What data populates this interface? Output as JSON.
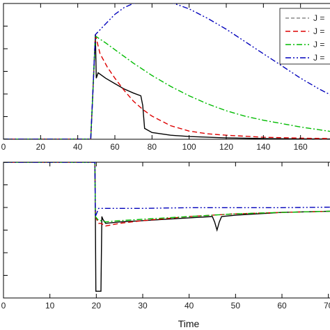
{
  "chart_data": [
    {
      "type": "line",
      "title": "",
      "xlabel": "",
      "ylabel": "",
      "xlim": [
        0,
        180
      ],
      "ylim": [
        0,
        1.0
      ],
      "x_ticks": [
        0,
        20,
        40,
        60,
        80,
        100,
        120,
        140,
        160
      ],
      "legend": {
        "placement": "top-right",
        "entries": [
          {
            "label": "J =",
            "color": "#888888",
            "dash": "5,3"
          },
          {
            "label": "J =",
            "color": "#dd0000",
            "dash": "7,4"
          },
          {
            "label": "J =",
            "color": "#00bb00",
            "dash": "8,3,2,3"
          },
          {
            "label": "J =",
            "color": "#0000bb",
            "dash": "8,3,2,3,2,3"
          }
        ]
      },
      "series": [
        {
          "color": "#000000",
          "dash": "",
          "x": [
            0,
            47,
            48,
            49.5,
            50,
            51,
            55,
            60,
            65,
            70,
            74,
            75,
            76,
            80,
            90,
            100,
            120,
            140,
            160,
            180
          ],
          "y": [
            0,
            0,
            0.3,
            0.77,
            0.45,
            0.49,
            0.45,
            0.41,
            0.37,
            0.34,
            0.32,
            0.25,
            0.08,
            0.05,
            0.03,
            0.02,
            0.01,
            0.005,
            0.002,
            0.001
          ]
        },
        {
          "color": "#dd0000",
          "dash": "7,4",
          "x": [
            0,
            47,
            48,
            49.5,
            52,
            56,
            60,
            65,
            70,
            75,
            80,
            90,
            100,
            110,
            120,
            140,
            160,
            180
          ],
          "y": [
            0,
            0,
            0.3,
            0.77,
            0.63,
            0.53,
            0.45,
            0.36,
            0.28,
            0.22,
            0.17,
            0.1,
            0.06,
            0.04,
            0.03,
            0.015,
            0.008,
            0.004
          ]
        },
        {
          "color": "#00bb00",
          "dash": "8,3,2,3",
          "x": [
            0,
            47,
            48,
            49.5,
            55,
            60,
            70,
            80,
            90,
            100,
            110,
            120,
            130,
            140,
            160,
            180
          ],
          "y": [
            0,
            0,
            0.3,
            0.76,
            0.71,
            0.66,
            0.56,
            0.47,
            0.39,
            0.32,
            0.26,
            0.21,
            0.17,
            0.14,
            0.09,
            0.05
          ]
        },
        {
          "color": "#0000bb",
          "dash": "8,3,2,3,2,3",
          "x": [
            0,
            47,
            48,
            49.5,
            55,
            60,
            65,
            70,
            75,
            80,
            85,
            90,
            100,
            110,
            120,
            130,
            140,
            150,
            160,
            170,
            180
          ],
          "y": [
            0,
            0,
            0.3,
            0.77,
            0.85,
            0.92,
            0.97,
            1.0,
            1.02,
            1.03,
            1.025,
            1.01,
            0.96,
            0.89,
            0.81,
            0.72,
            0.63,
            0.54,
            0.45,
            0.37,
            0.3
          ]
        }
      ]
    },
    {
      "type": "line",
      "title": "",
      "xlabel": "Time",
      "ylabel": "",
      "xlim": [
        0,
        72
      ],
      "ylim": [
        0,
        1.0
      ],
      "x_ticks": [
        0,
        10,
        20,
        30,
        40,
        50,
        60,
        70
      ],
      "series": [
        {
          "color": "#000000",
          "dash": "",
          "x": [
            0,
            19.7,
            19.8,
            19.9,
            20.5,
            21,
            21.2,
            21.4,
            22,
            25,
            30,
            40,
            45,
            45.5,
            46,
            46.5,
            47,
            50,
            60,
            72
          ],
          "y": [
            1.0,
            1.0,
            0.6,
            0.05,
            0.05,
            0.05,
            0.6,
            0.58,
            0.55,
            0.56,
            0.57,
            0.59,
            0.6,
            0.56,
            0.5,
            0.56,
            0.6,
            0.61,
            0.63,
            0.64
          ]
        },
        {
          "color": "#dd0000",
          "dash": "7,4",
          "x": [
            0,
            19.7,
            19.8,
            20.5,
            21,
            22,
            25,
            30,
            40,
            50,
            60,
            72
          ],
          "y": [
            1.0,
            1.0,
            0.6,
            0.55,
            0.55,
            0.53,
            0.55,
            0.57,
            0.6,
            0.62,
            0.63,
            0.64
          ]
        },
        {
          "color": "#00bb00",
          "dash": "8,3,2,3",
          "x": [
            0,
            19.7,
            19.8,
            20.5,
            21,
            22,
            25,
            30,
            40,
            50,
            60,
            72
          ],
          "y": [
            1.0,
            1.0,
            0.6,
            0.57,
            0.57,
            0.56,
            0.57,
            0.58,
            0.6,
            0.62,
            0.63,
            0.64
          ]
        },
        {
          "color": "#0000bb",
          "dash": "8,3,2,3,2,3",
          "x": [
            0,
            19.7,
            19.8,
            20.5,
            21,
            22,
            30,
            40,
            50,
            60,
            72
          ],
          "y": [
            1.0,
            1.0,
            0.6,
            0.66,
            0.66,
            0.66,
            0.66,
            0.665,
            0.665,
            0.665,
            0.67
          ]
        }
      ]
    }
  ]
}
